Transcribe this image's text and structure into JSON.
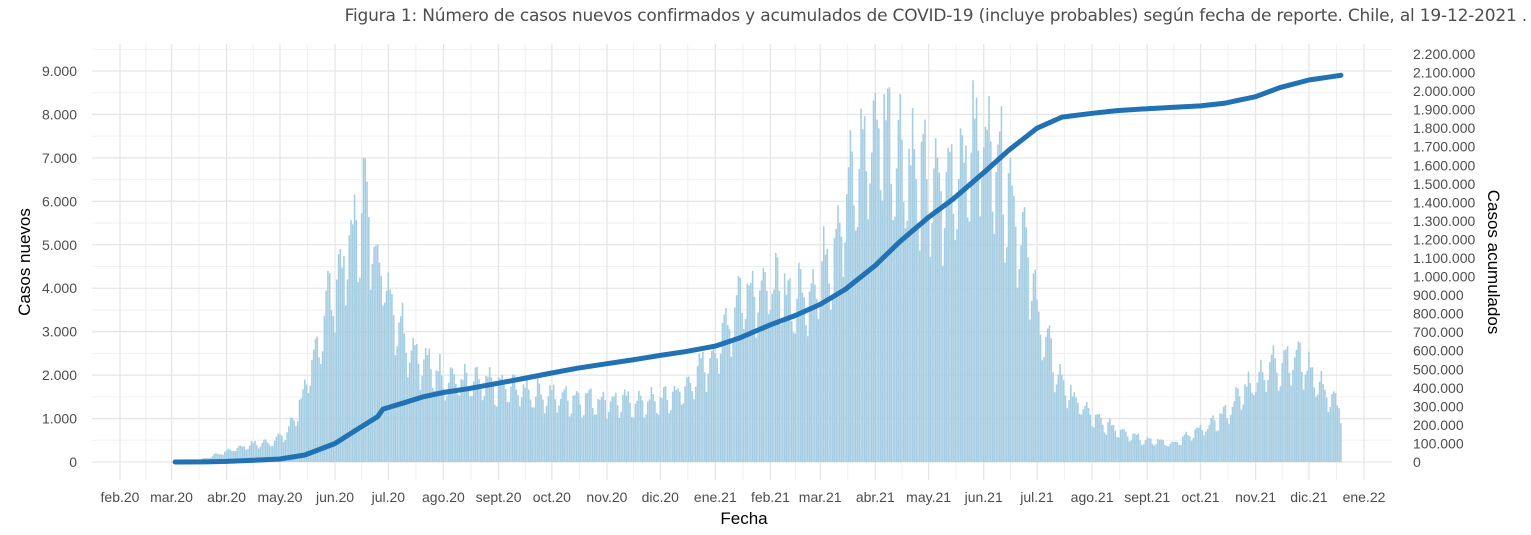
{
  "chart_data": {
    "type": "bar+line",
    "title": "Figura 1: Número de casos nuevos confirmados y acumulados de COVID-19 (incluye probables) según fecha de reporte. Chile, al 19-12-2021 .",
    "xlabel": "Fecha",
    "ylabel_left": "Casos nuevos",
    "ylabel_right": "Casos acumulados",
    "grid": true,
    "x_domain": [
      "2020-02-01",
      "2022-01-01"
    ],
    "x_ticks": [
      {
        "date": "2020-02-01",
        "label": "feb.20"
      },
      {
        "date": "2020-03-01",
        "label": "mar.20"
      },
      {
        "date": "2020-04-01",
        "label": "abr.20"
      },
      {
        "date": "2020-05-01",
        "label": "may.20"
      },
      {
        "date": "2020-06-01",
        "label": "jun.20"
      },
      {
        "date": "2020-07-01",
        "label": "jul.20"
      },
      {
        "date": "2020-08-01",
        "label": "ago.20"
      },
      {
        "date": "2020-09-01",
        "label": "sept.20"
      },
      {
        "date": "2020-10-01",
        "label": "oct.20"
      },
      {
        "date": "2020-11-01",
        "label": "nov.20"
      },
      {
        "date": "2020-12-01",
        "label": "dic.20"
      },
      {
        "date": "2021-01-01",
        "label": "ene.21"
      },
      {
        "date": "2021-02-01",
        "label": "feb.21"
      },
      {
        "date": "2021-03-01",
        "label": "mar.21"
      },
      {
        "date": "2021-04-01",
        "label": "abr.21"
      },
      {
        "date": "2021-05-01",
        "label": "may.21"
      },
      {
        "date": "2021-06-01",
        "label": "jun.21"
      },
      {
        "date": "2021-07-01",
        "label": "jul.21"
      },
      {
        "date": "2021-08-01",
        "label": "ago.21"
      },
      {
        "date": "2021-09-01",
        "label": "sept.21"
      },
      {
        "date": "2021-10-01",
        "label": "oct.21"
      },
      {
        "date": "2021-11-01",
        "label": "nov.21"
      },
      {
        "date": "2021-12-01",
        "label": "dic.21"
      },
      {
        "date": "2022-01-01",
        "label": "ene.22"
      }
    ],
    "y_left": {
      "range": [
        0,
        9500
      ],
      "ticks": [
        0,
        1000,
        2000,
        3000,
        4000,
        5000,
        6000,
        7000,
        8000,
        9000
      ],
      "tick_labels": [
        "0",
        "1.000",
        "2.000",
        "3.000",
        "4.000",
        "5.000",
        "6.000",
        "7.000",
        "8.000",
        "9.000"
      ]
    },
    "y_right": {
      "range": [
        0,
        2250000
      ],
      "ticks": [
        0,
        100000,
        200000,
        300000,
        400000,
        500000,
        600000,
        700000,
        800000,
        900000,
        1000000,
        1100000,
        1200000,
        1300000,
        1400000,
        1500000,
        1600000,
        1700000,
        1800000,
        1900000,
        2000000,
        2100000,
        2200000
      ],
      "tick_labels": [
        "0",
        "100.000",
        "200.000",
        "300.000",
        "400.000",
        "500.000",
        "600.000",
        "700.000",
        "800.000",
        "900.000",
        "1.000.000",
        "1.100.000",
        "1.200.000",
        "1.300.000",
        "1.400.000",
        "1.500.000",
        "1.600.000",
        "1.700.000",
        "1.800.000",
        "1.900.000",
        "2.000.000",
        "2.100.000",
        "2.200.000"
      ]
    },
    "series": [
      {
        "name": "Casos nuevos",
        "type": "bar",
        "color": "#a6cee3",
        "axis": "left",
        "start_date": "2020-03-03",
        "end_date": "2021-12-19",
        "daily_shape_note": "estimated from figure; weekly anchor values below with weekday oscillation",
        "weekly_anchors": [
          [
            "2020-03-03",
            1
          ],
          [
            "2020-03-15",
            30
          ],
          [
            "2020-03-25",
            150
          ],
          [
            "2020-04-05",
            300
          ],
          [
            "2020-04-15",
            400
          ],
          [
            "2020-04-25",
            450
          ],
          [
            "2020-05-05",
            650
          ],
          [
            "2020-05-12",
            1300
          ],
          [
            "2020-05-20",
            2200
          ],
          [
            "2020-05-27",
            3600
          ],
          [
            "2020-06-03",
            4200
          ],
          [
            "2020-06-10",
            5000
          ],
          [
            "2020-06-17",
            6000
          ],
          [
            "2020-06-24",
            4900
          ],
          [
            "2020-07-01",
            3900
          ],
          [
            "2020-07-10",
            2900
          ],
          [
            "2020-07-20",
            2300
          ],
          [
            "2020-08-01",
            1950
          ],
          [
            "2020-08-15",
            1800
          ],
          [
            "2020-09-01",
            1700
          ],
          [
            "2020-09-15",
            1650
          ],
          [
            "2020-10-01",
            1500
          ],
          [
            "2020-10-15",
            1450
          ],
          [
            "2020-11-01",
            1400
          ],
          [
            "2020-11-15",
            1350
          ],
          [
            "2020-12-01",
            1400
          ],
          [
            "2020-12-15",
            1650
          ],
          [
            "2021-01-01",
            2500
          ],
          [
            "2021-01-15",
            3800
          ],
          [
            "2021-01-25",
            4100
          ],
          [
            "2021-02-05",
            3900
          ],
          [
            "2021-02-15",
            3700
          ],
          [
            "2021-02-25",
            4000
          ],
          [
            "2021-03-05",
            4600
          ],
          [
            "2021-03-15",
            5800
          ],
          [
            "2021-03-25",
            7000
          ],
          [
            "2021-04-05",
            7800
          ],
          [
            "2021-04-12",
            7200
          ],
          [
            "2021-04-22",
            6700
          ],
          [
            "2021-05-01",
            6200
          ],
          [
            "2021-05-10",
            6200
          ],
          [
            "2021-05-20",
            6900
          ],
          [
            "2021-06-01",
            7500
          ],
          [
            "2021-06-10",
            6900
          ],
          [
            "2021-06-20",
            5600
          ],
          [
            "2021-06-28",
            4200
          ],
          [
            "2021-07-05",
            2800
          ],
          [
            "2021-07-15",
            1800
          ],
          [
            "2021-07-25",
            1300
          ],
          [
            "2021-08-05",
            900
          ],
          [
            "2021-08-20",
            680
          ],
          [
            "2021-09-01",
            500
          ],
          [
            "2021-09-15",
            420
          ],
          [
            "2021-09-25",
            600
          ],
          [
            "2021-10-05",
            800
          ],
          [
            "2021-10-15",
            1100
          ],
          [
            "2021-10-25",
            1600
          ],
          [
            "2021-11-01",
            1900
          ],
          [
            "2021-11-10",
            2200
          ],
          [
            "2021-11-20",
            2400
          ],
          [
            "2021-11-28",
            2300
          ],
          [
            "2021-12-05",
            1900
          ],
          [
            "2021-12-12",
            1500
          ],
          [
            "2021-12-19",
            1200
          ]
        ]
      },
      {
        "name": "Casos acumulados",
        "type": "line",
        "color": "#2171b5",
        "axis": "right",
        "points": [
          [
            "2020-03-03",
            0
          ],
          [
            "2020-03-20",
            500
          ],
          [
            "2020-04-01",
            3000
          ],
          [
            "2020-04-15",
            8500
          ],
          [
            "2020-05-01",
            16000
          ],
          [
            "2020-05-15",
            38000
          ],
          [
            "2020-06-01",
            100000
          ],
          [
            "2020-06-15",
            185000
          ],
          [
            "2020-06-25",
            245000
          ],
          [
            "2020-06-28",
            285000
          ],
          [
            "2020-07-10",
            320000
          ],
          [
            "2020-07-20",
            350000
          ],
          [
            "2020-08-01",
            375000
          ],
          [
            "2020-08-15",
            395000
          ],
          [
            "2020-09-01",
            425000
          ],
          [
            "2020-09-15",
            450000
          ],
          [
            "2020-10-01",
            480000
          ],
          [
            "2020-10-15",
            505000
          ],
          [
            "2020-11-01",
            530000
          ],
          [
            "2020-11-15",
            550000
          ],
          [
            "2020-12-01",
            575000
          ],
          [
            "2020-12-15",
            595000
          ],
          [
            "2021-01-01",
            625000
          ],
          [
            "2021-01-15",
            670000
          ],
          [
            "2021-02-01",
            740000
          ],
          [
            "2021-02-15",
            790000
          ],
          [
            "2021-03-01",
            850000
          ],
          [
            "2021-03-15",
            930000
          ],
          [
            "2021-04-01",
            1060000
          ],
          [
            "2021-04-15",
            1190000
          ],
          [
            "2021-05-01",
            1320000
          ],
          [
            "2021-05-15",
            1420000
          ],
          [
            "2021-06-01",
            1560000
          ],
          [
            "2021-06-15",
            1680000
          ],
          [
            "2021-07-01",
            1800000
          ],
          [
            "2021-07-15",
            1860000
          ],
          [
            "2021-08-01",
            1880000
          ],
          [
            "2021-08-15",
            1895000
          ],
          [
            "2021-09-01",
            1905000
          ],
          [
            "2021-09-15",
            1912000
          ],
          [
            "2021-10-01",
            1920000
          ],
          [
            "2021-10-15",
            1935000
          ],
          [
            "2021-11-01",
            1970000
          ],
          [
            "2021-11-15",
            2020000
          ],
          [
            "2021-12-01",
            2060000
          ],
          [
            "2021-12-19",
            2085000
          ]
        ]
      }
    ]
  }
}
